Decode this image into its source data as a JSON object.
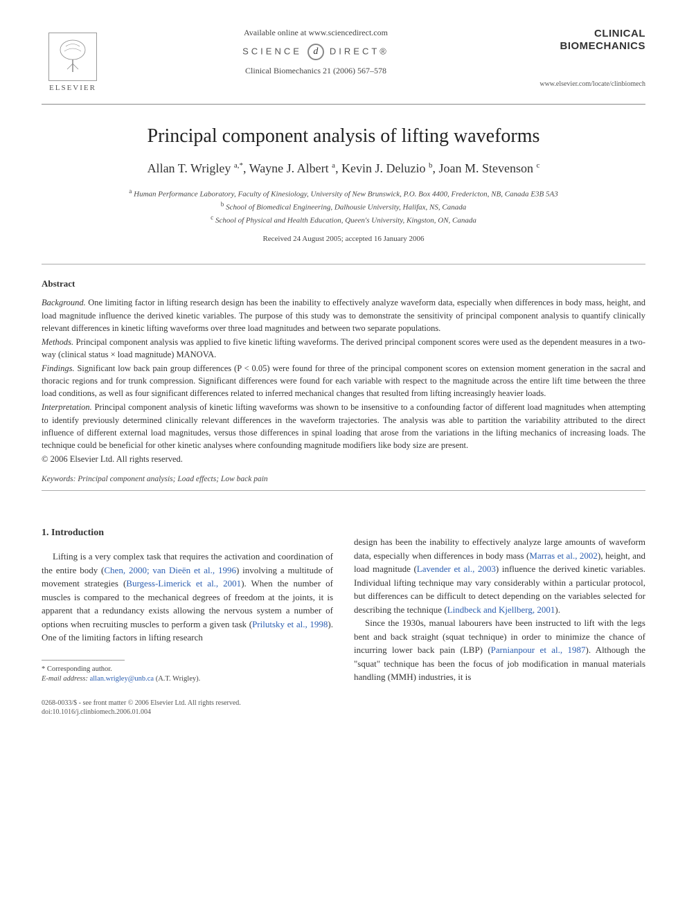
{
  "header": {
    "available_online": "Available online at www.sciencedirect.com",
    "science_direct_left": "SCIENCE",
    "science_direct_right": "DIRECT®",
    "journal_ref": "Clinical Biomechanics 21 (2006) 567–578",
    "publisher": "ELSEVIER",
    "journal_name_line1": "CLINICAL",
    "journal_name_line2": "BIOMECHANICS",
    "journal_url": "www.elsevier.com/locate/clinbiomech"
  },
  "title": "Principal component analysis of lifting waveforms",
  "authors_html": "Allan T. Wrigley <sup>a,*</sup>, Wayne J. Albert <sup>a</sup>, Kevin J. Deluzio <sup>b</sup>, Joan M. Stevenson <sup>c</sup>",
  "affiliations": {
    "a": "Human Performance Laboratory, Faculty of Kinesiology, University of New Brunswick, P.O. Box 4400, Fredericton, NB, Canada E3B 5A3",
    "b": "School of Biomedical Engineering, Dalhousie University, Halifax, NS, Canada",
    "c": "School of Physical and Health Education, Queen's University, Kingston, ON, Canada"
  },
  "received": "Received 24 August 2005; accepted 16 January 2006",
  "abstract": {
    "heading": "Abstract",
    "background_label": "Background.",
    "background": "One limiting factor in lifting research design has been the inability to effectively analyze waveform data, especially when differences in body mass, height, and load magnitude influence the derived kinetic variables. The purpose of this study was to demonstrate the sensitivity of principal component analysis to quantify clinically relevant differences in kinetic lifting waveforms over three load magnitudes and between two separate populations.",
    "methods_label": "Methods.",
    "methods": "Principal component analysis was applied to five kinetic lifting waveforms. The derived principal component scores were used as the dependent measures in a two-way (clinical status × load magnitude) MANOVA.",
    "findings_label": "Findings.",
    "findings": "Significant low back pain group differences (P < 0.05) were found for three of the principal component scores on extension moment generation in the sacral and thoracic regions and for trunk compression. Significant differences were found for each variable with respect to the magnitude across the entire lift time between the three load conditions, as well as four significant differences related to inferred mechanical changes that resulted from lifting increasingly heavier loads.",
    "interpretation_label": "Interpretation.",
    "interpretation": "Principal component analysis of kinetic lifting waveforms was shown to be insensitive to a confounding factor of different load magnitudes when attempting to identify previously determined clinically relevant differences in the waveform trajectories. The analysis was able to partition the variability attributed to the direct influence of different external load magnitudes, versus those differences in spinal loading that arose from the variations in the lifting mechanics of increasing loads. The technique could be beneficial for other kinetic analyses where confounding magnitude modifiers like body size are present.",
    "copyright": "© 2006 Elsevier Ltd. All rights reserved."
  },
  "keywords": {
    "label": "Keywords:",
    "text": "Principal component analysis; Load effects; Low back pain"
  },
  "section1": {
    "heading": "1. Introduction",
    "col1_p1_pre": "Lifting is a very complex task that requires the activation and coordination of the entire body (",
    "col1_ref1": "Chen, 2000; van Dieën et al., 1996",
    "col1_p1_mid1": ") involving a multitude of movement strategies (",
    "col1_ref2": "Burgess-Limerick et al., 2001",
    "col1_p1_mid2": "). When the number of muscles is compared to the mechanical degrees of freedom at the joints, it is apparent that a redundancy exists allowing the nervous system a number of options when recruiting muscles to perform a given task (",
    "col1_ref3": "Prilutsky et al., 1998",
    "col1_p1_end": "). One of the limiting factors in lifting research",
    "col2_p1_pre": "design has been the inability to effectively analyze large amounts of waveform data, especially when differences in body mass (",
    "col2_ref1": "Marras et al., 2002",
    "col2_p1_mid1": "), height, and load magnitude (",
    "col2_ref2": "Lavender et al., 2003",
    "col2_p1_mid2": ") influence the derived kinetic variables. Individual lifting technique may vary considerably within a particular protocol, but differences can be difficult to detect depending on the variables selected for describing the technique (",
    "col2_ref3": "Lindbeck and Kjellberg, 2001",
    "col2_p1_end": ").",
    "col2_p2_pre": "Since the 1930s, manual labourers have been instructed to lift with the legs bent and back straight (squat technique) in order to minimize the chance of incurring lower back pain (LBP) (",
    "col2_ref4": "Parnianpour et al., 1987",
    "col2_p2_end": "). Although the \"squat\" technique has been the focus of job modification in manual materials handling (MMH) industries, it is"
  },
  "footnote": {
    "corresponding": "* Corresponding author.",
    "email_label": "E-mail address:",
    "email": "allan.wrigley@unb.ca",
    "email_person": "(A.T. Wrigley)."
  },
  "footer": {
    "issn": "0268-0033/$ - see front matter © 2006 Elsevier Ltd. All rights reserved.",
    "doi": "doi:10.1016/j.clinbiomech.2006.01.004"
  },
  "colors": {
    "link": "#2a5db0",
    "text": "#333333",
    "muted": "#555555",
    "background": "#ffffff"
  }
}
